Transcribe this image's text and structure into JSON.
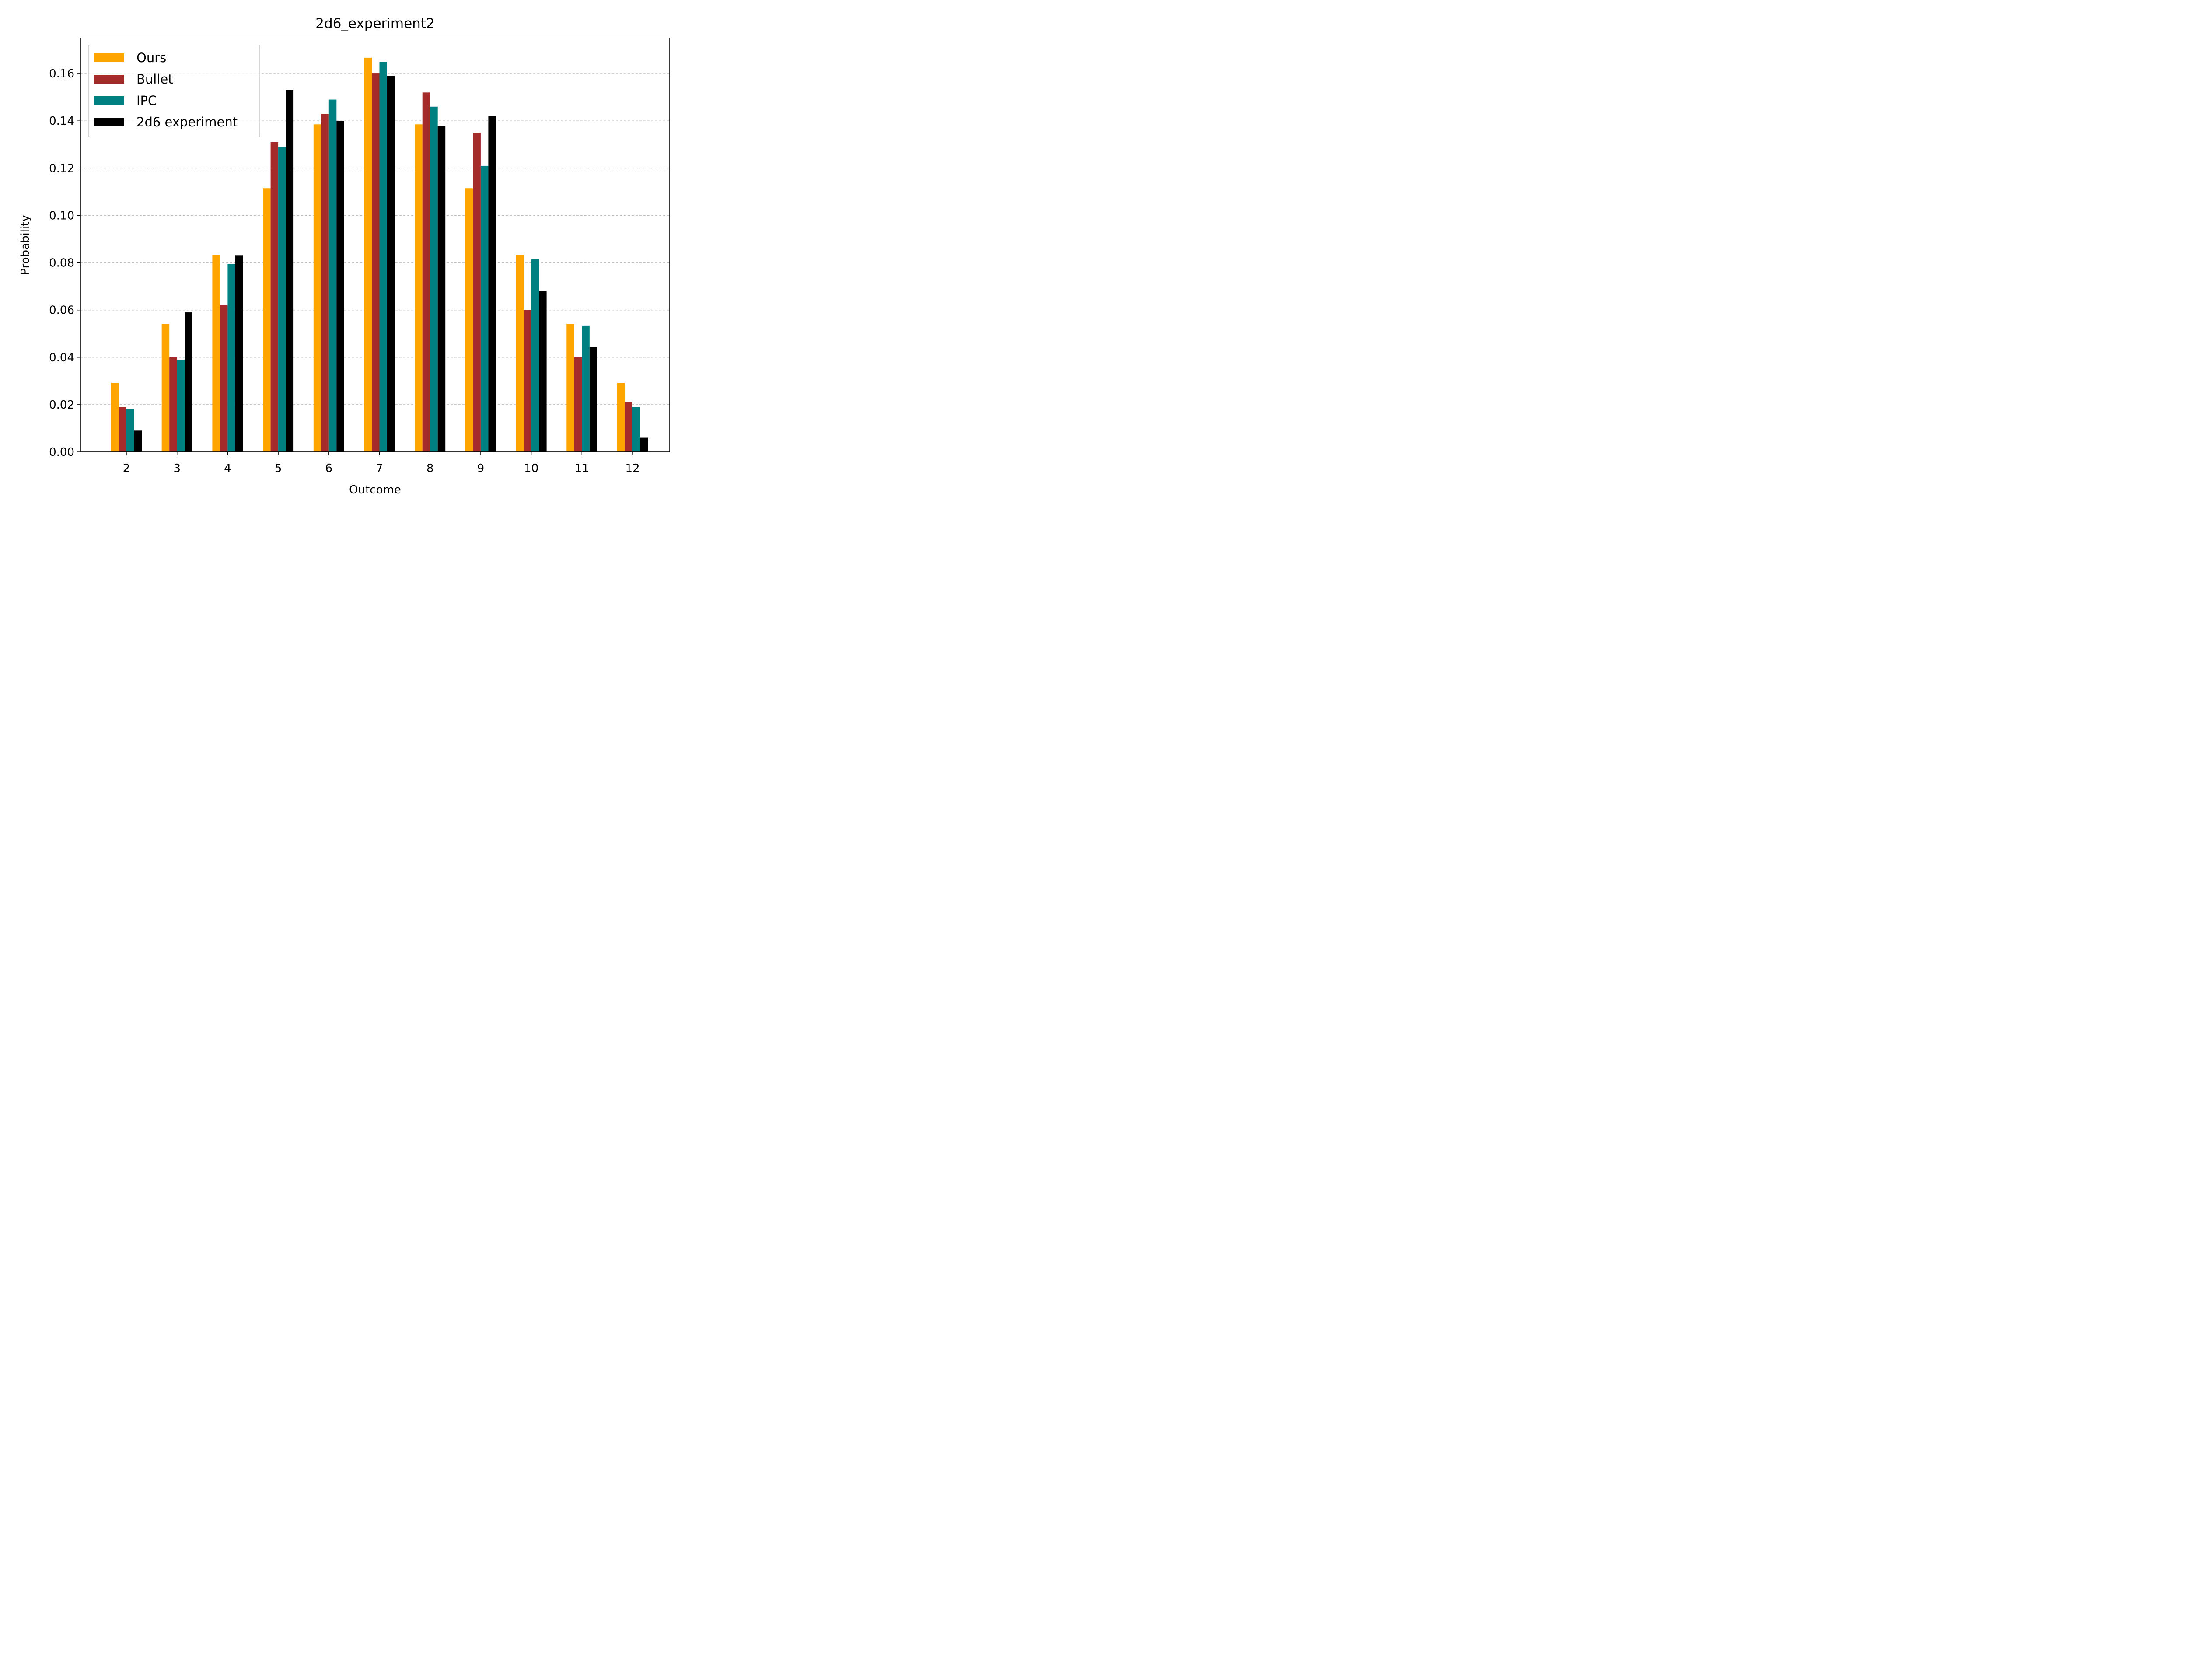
{
  "chart_data": {
    "type": "bar",
    "title": "2d6_experiment2",
    "xlabel": "Outcome",
    "ylabel": "Probability",
    "categories": [
      "2",
      "3",
      "4",
      "5",
      "6",
      "7",
      "8",
      "9",
      "10",
      "11",
      "12"
    ],
    "y_ticks": [
      "0.00",
      "0.02",
      "0.04",
      "0.06",
      "0.08",
      "0.10",
      "0.12",
      "0.14",
      "0.16"
    ],
    "ylim": [
      0,
      0.175
    ],
    "grid": "y-dashed",
    "legend_position": "upper-left",
    "series": [
      {
        "name": "Ours",
        "color": "#FFA500",
        "values": [
          0.0292,
          0.0542,
          0.0833,
          0.1115,
          0.1385,
          0.1667,
          0.1385,
          0.1115,
          0.0833,
          0.0542,
          0.0292
        ]
      },
      {
        "name": "Bullet",
        "color": "#A52A2A",
        "values": [
          0.019,
          0.04,
          0.062,
          0.131,
          0.143,
          0.16,
          0.152,
          0.135,
          0.06,
          0.04,
          0.021
        ]
      },
      {
        "name": "IPC",
        "color": "#008080",
        "values": [
          0.018,
          0.039,
          0.0795,
          0.129,
          0.149,
          0.165,
          0.146,
          0.121,
          0.0815,
          0.0533,
          0.019
        ]
      },
      {
        "name": "2d6 experiment",
        "color": "#000000",
        "values": [
          0.009,
          0.059,
          0.083,
          0.153,
          0.14,
          0.159,
          0.138,
          0.142,
          0.068,
          0.0443,
          0.006
        ]
      }
    ]
  }
}
